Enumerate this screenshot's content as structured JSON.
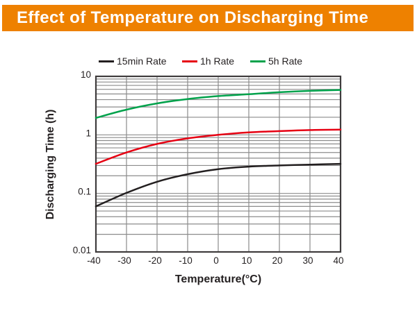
{
  "header": {
    "title": "Effect of Temperature on Discharging Time",
    "bg_color": "#ee8100",
    "text_color": "#ffffff"
  },
  "chart_data": {
    "type": "line",
    "title": "Effect of Temperature on Discharging Time",
    "xlabel": "Temperature(°C)",
    "ylabel": "Discharging Time (h)",
    "x": [
      -40,
      -30,
      -20,
      -10,
      0,
      10,
      20,
      30,
      40
    ],
    "x_tick_labels": [
      "-40",
      "-30",
      "-20",
      "-10",
      "0",
      "10",
      "20",
      "30",
      "40"
    ],
    "xlim": [
      -40,
      40
    ],
    "y_scale": "log",
    "ylim": [
      0.01,
      10
    ],
    "y_tick_values": [
      10,
      1,
      0.1,
      0.01
    ],
    "y_tick_labels": [
      "10",
      "1",
      "0.1",
      "0.01"
    ],
    "grid": "log minor gridlines (2-9 each decade) horizontal, every 10°C vertical, gray",
    "legend_position": "top",
    "series": [
      {
        "name": "15min Rate",
        "color": "#231f20",
        "values": [
          0.06,
          0.102,
          0.158,
          0.213,
          0.26,
          0.287,
          0.3,
          0.31,
          0.32
        ]
      },
      {
        "name": "1h Rate",
        "color": "#e60012",
        "values": [
          0.32,
          0.5,
          0.7,
          0.87,
          1.0,
          1.1,
          1.16,
          1.21,
          1.23
        ]
      },
      {
        "name": "5h Rate",
        "color": "#00a24b",
        "values": [
          1.95,
          2.7,
          3.45,
          4.1,
          4.6,
          4.95,
          5.35,
          5.65,
          5.85
        ]
      }
    ],
    "colors": {
      "grid": "#8b8b8b",
      "frame": "#3f3c3d",
      "tick_text": "#231f20"
    }
  }
}
